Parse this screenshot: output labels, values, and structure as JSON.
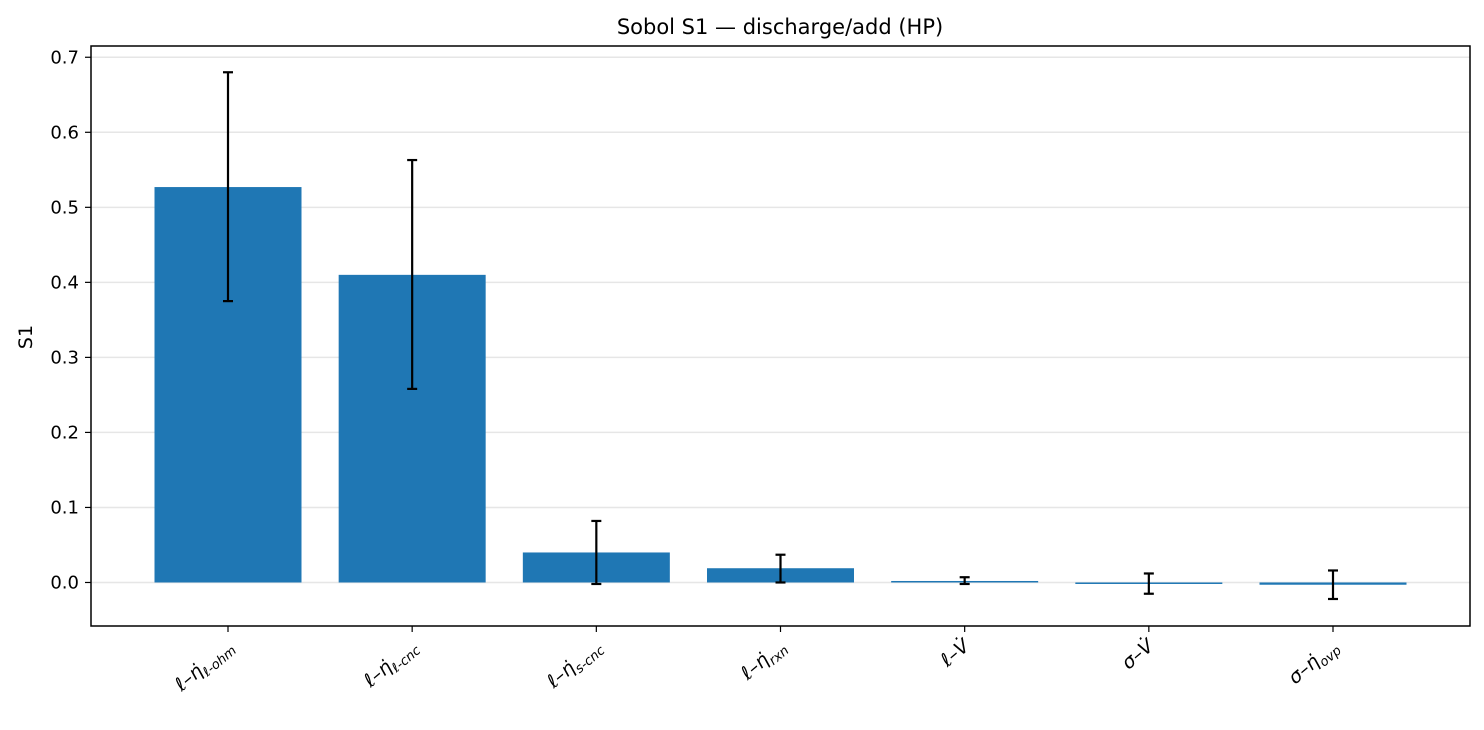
{
  "chart_data": {
    "type": "bar",
    "title": "Sobol S1 — discharge/add (HP)",
    "xlabel": "",
    "ylabel": "S1",
    "ylim": [
      -0.058,
      0.715
    ],
    "yticks": [
      0.0,
      0.1,
      0.2,
      0.3,
      0.4,
      0.5,
      0.6,
      0.7
    ],
    "ytick_labels": [
      "0.0",
      "0.1",
      "0.2",
      "0.3",
      "0.4",
      "0.5",
      "0.6",
      "0.7"
    ],
    "grid": "y",
    "categories": [
      {
        "main": "ℓ–η̇",
        "sub": "ℓ-ohm"
      },
      {
        "main": "ℓ–η̇",
        "sub": "ℓ-cnc"
      },
      {
        "main": "ℓ–η̇",
        "sub": "s-cnc"
      },
      {
        "main": "ℓ–η̇",
        "sub": "rxn"
      },
      {
        "main": "ℓ–V̇",
        "sub": ""
      },
      {
        "main": "σ–V̇",
        "sub": ""
      },
      {
        "main": "σ–η̇",
        "sub": "ovp"
      }
    ],
    "values": [
      0.527,
      0.41,
      0.04,
      0.019,
      0.002,
      -0.001,
      -0.003
    ],
    "err_low": [
      0.375,
      0.258,
      -0.002,
      0.0,
      -0.002,
      -0.015,
      -0.022
    ],
    "err_high": [
      0.68,
      0.563,
      0.082,
      0.037,
      0.007,
      0.012,
      0.016
    ],
    "bar_color": "#1f77b4",
    "err_color": "#000000",
    "grid_color": "#e6e6e6"
  }
}
